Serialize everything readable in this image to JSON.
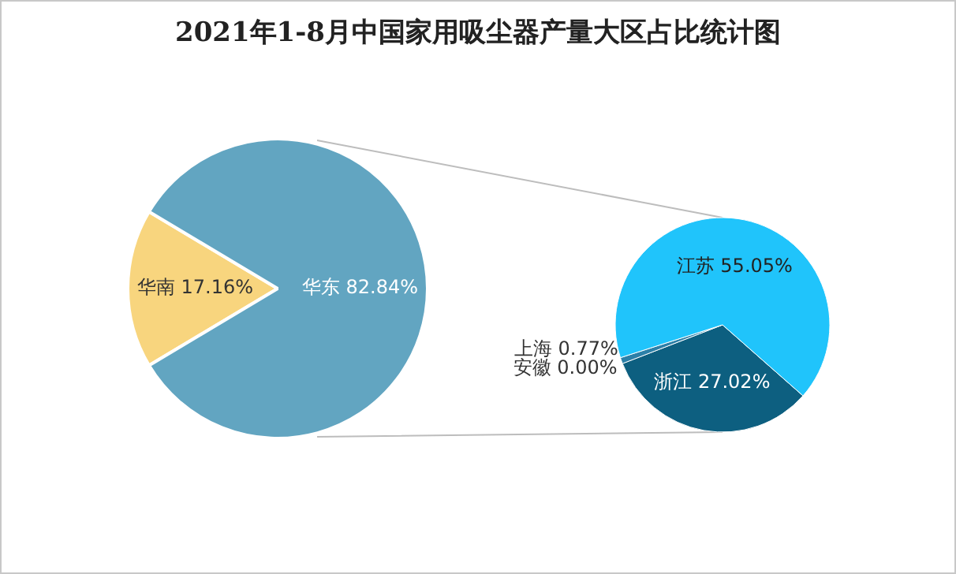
{
  "chart_data": [
    {
      "type": "pie",
      "title": "2021年1-8月中国家用吸尘器产量大区占比统计图",
      "categories": [
        "华南",
        "华东"
      ],
      "values": [
        17.16,
        82.84
      ],
      "colors": [
        "#f8d57e",
        "#62a5c1"
      ],
      "value_labels": [
        "17.16%",
        "82.84%"
      ]
    },
    {
      "type": "pie",
      "categories": [
        "浙江",
        "上海",
        "安徽",
        "江苏"
      ],
      "values": [
        27.02,
        0.77,
        0.0,
        55.05
      ],
      "colors": [
        "#0d5f80",
        "#2c80a8",
        "#3a8fb8",
        "#20c4fb"
      ],
      "value_labels": [
        "27.02%",
        "0.77%",
        "0.00%",
        "55.05%"
      ]
    }
  ]
}
